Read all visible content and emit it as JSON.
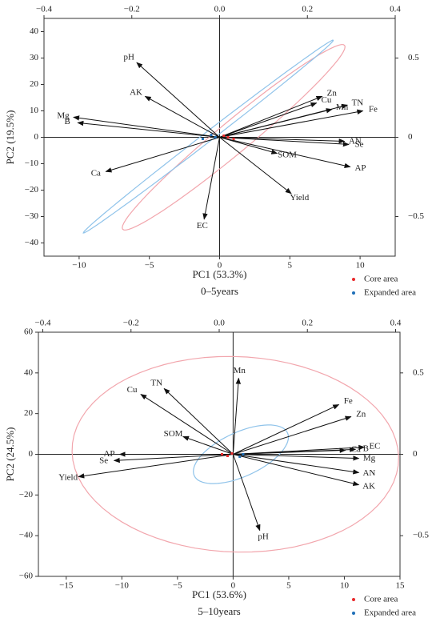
{
  "chart_data": [
    {
      "type": "biplot",
      "x_label": "PC1 (53.3%)",
      "y_label": "PC2 (19.5%)",
      "caption": "0–5years",
      "xlim": [
        -12.5,
        12.5
      ],
      "xticks": [
        {
          "value": -10,
          "label": "−10"
        },
        {
          "value": -5,
          "label": "−5"
        },
        0,
        5,
        10
      ],
      "ylim": [
        -45,
        45
      ],
      "yticks": [
        40,
        30,
        20,
        10,
        0,
        {
          "value": -10,
          "label": "−10"
        },
        {
          "value": -20,
          "label": "−20"
        },
        {
          "value": -30,
          "label": "−30"
        },
        {
          "value": -40,
          "label": "−40"
        }
      ],
      "x2lim": [
        -0.4,
        0.4
      ],
      "x2ticks": [
        {
          "value": -0.4,
          "label": "−0.4"
        },
        {
          "value": -0.2,
          "label": "−0.2"
        },
        {
          "value": 0,
          "label": "0.0"
        },
        0.2,
        0.4
      ],
      "y2lim": [
        -0.75,
        0.75
      ],
      "y2ticks": [
        0.5,
        0,
        {
          "value": -0.5,
          "label": "−0.5"
        }
      ],
      "loadings": {
        "labels": [
          "pH",
          "AK",
          "Mg",
          "B",
          "Ca",
          "EC",
          "Zn",
          "Cu",
          "Mn",
          "TN",
          "Fe",
          "AN",
          "Se",
          "SOM",
          "AP",
          "Yield"
        ],
        "x": [
          -5.9,
          -5.3,
          -10.4,
          -10.1,
          -8.1,
          -1.1,
          7.3,
          6.9,
          8.0,
          9.1,
          10.2,
          8.9,
          9.2,
          4.1,
          9.3,
          5.1
        ],
        "y": [
          28.3,
          15.5,
          7.6,
          5.5,
          -13.0,
          -31.0,
          15.5,
          13.0,
          10.6,
          12.2,
          10.0,
          -1.5,
          -2.7,
          -6.1,
          -11.2,
          -21.3
        ]
      },
      "series": [
        {
          "name": "Core area",
          "color": "#e8292b",
          "x": [
            0.6,
            1.0,
            0.3
          ],
          "y": [
            0.0,
            -0.6,
            0.6
          ],
          "ellipse": {
            "cx": 1.0,
            "cy": 0.0,
            "ax": 7.9,
            "ay": 34.8,
            "bx": 0.7,
            "by": -4.7
          },
          "ellipse_color": "#f2a6ad"
        },
        {
          "name": "Expanded area",
          "color": "#1f6fb8",
          "x": [
            -1.2,
            -0.6,
            -0.3
          ],
          "y": [
            -0.6,
            0.9,
            0.0
          ],
          "ellipse": {
            "cx": -0.8,
            "cy": 0.3,
            "ax": 8.9,
            "ay": 36.5,
            "bx": 0.2,
            "by": -1.4
          },
          "ellipse_color": "#8fc3ea"
        }
      ]
    },
    {
      "type": "biplot",
      "x_label": "PC1 (53.6%)",
      "y_label": "PC2 (24.5%)",
      "caption": "5–10years",
      "xlim": [
        -17.5,
        15
      ],
      "xticks": [
        {
          "value": -15,
          "label": "−15"
        },
        {
          "value": -10,
          "label": "−10"
        },
        {
          "value": -5,
          "label": "−5"
        },
        0,
        5,
        10,
        15
      ],
      "ylim": [
        -60,
        60
      ],
      "yticks": [
        60,
        40,
        20,
        0,
        {
          "value": -20,
          "label": "−20"
        },
        {
          "value": -40,
          "label": "−40"
        },
        {
          "value": -60,
          "label": "−60"
        }
      ],
      "x2lim": [
        -0.41,
        0.41
      ],
      "x2ticks": [
        {
          "value": -0.4,
          "label": "−0.4"
        },
        {
          "value": -0.2,
          "label": "−0.2"
        },
        {
          "value": 0,
          "label": "0.0"
        },
        0.2,
        0.4
      ],
      "y2lim": [
        -0.75,
        0.75
      ],
      "y2ticks": [
        0.5,
        0,
        {
          "value": -0.5,
          "label": "−0.5"
        }
      ],
      "loadings": {
        "labels": [
          "Mn",
          "TN",
          "Cu",
          "SOM",
          "AP",
          "Se",
          "Yield",
          "pH",
          "Fe",
          "Zn",
          "Ca",
          "B",
          "EC",
          "Mg",
          "AN",
          "AK"
        ],
        "x": [
          0.5,
          -6.2,
          -8.3,
          -4.5,
          -10.2,
          -10.7,
          -13.9,
          2.4,
          9.5,
          10.6,
          10.1,
          11.0,
          11.8,
          11.3,
          11.3,
          11.3
        ],
        "y": [
          37.4,
          32.3,
          29.5,
          8.7,
          0.0,
          -3.1,
          -11.0,
          -37.4,
          24.4,
          18.5,
          2.0,
          2.4,
          3.5,
          -2.0,
          -9.0,
          -15.0
        ]
      },
      "series": [
        {
          "name": "Core area",
          "color": "#e8292b",
          "x": [
            -1.0,
            -0.5,
            -0.1
          ],
          "y": [
            0.0,
            -0.8,
            0.4
          ],
          "ellipse": {
            "cx": 0.2,
            "cy": 0.0,
            "ax": 14.6,
            "ay": 3.0,
            "bx": -1.5,
            "by": 48.0
          },
          "ellipse_color": "#f2a6ad"
        },
        {
          "name": "Expanded area",
          "color": "#1f6fb8",
          "x": [
            0.9,
            0.6
          ],
          "y": [
            0.0,
            -1.2
          ],
          "ellipse": {
            "cx": 0.7,
            "cy": 0.0,
            "ax": 4.0,
            "ay": 12.0,
            "bx": -1.5,
            "by": 8.0
          },
          "ellipse_color": "#8fc3ea"
        }
      ]
    }
  ]
}
